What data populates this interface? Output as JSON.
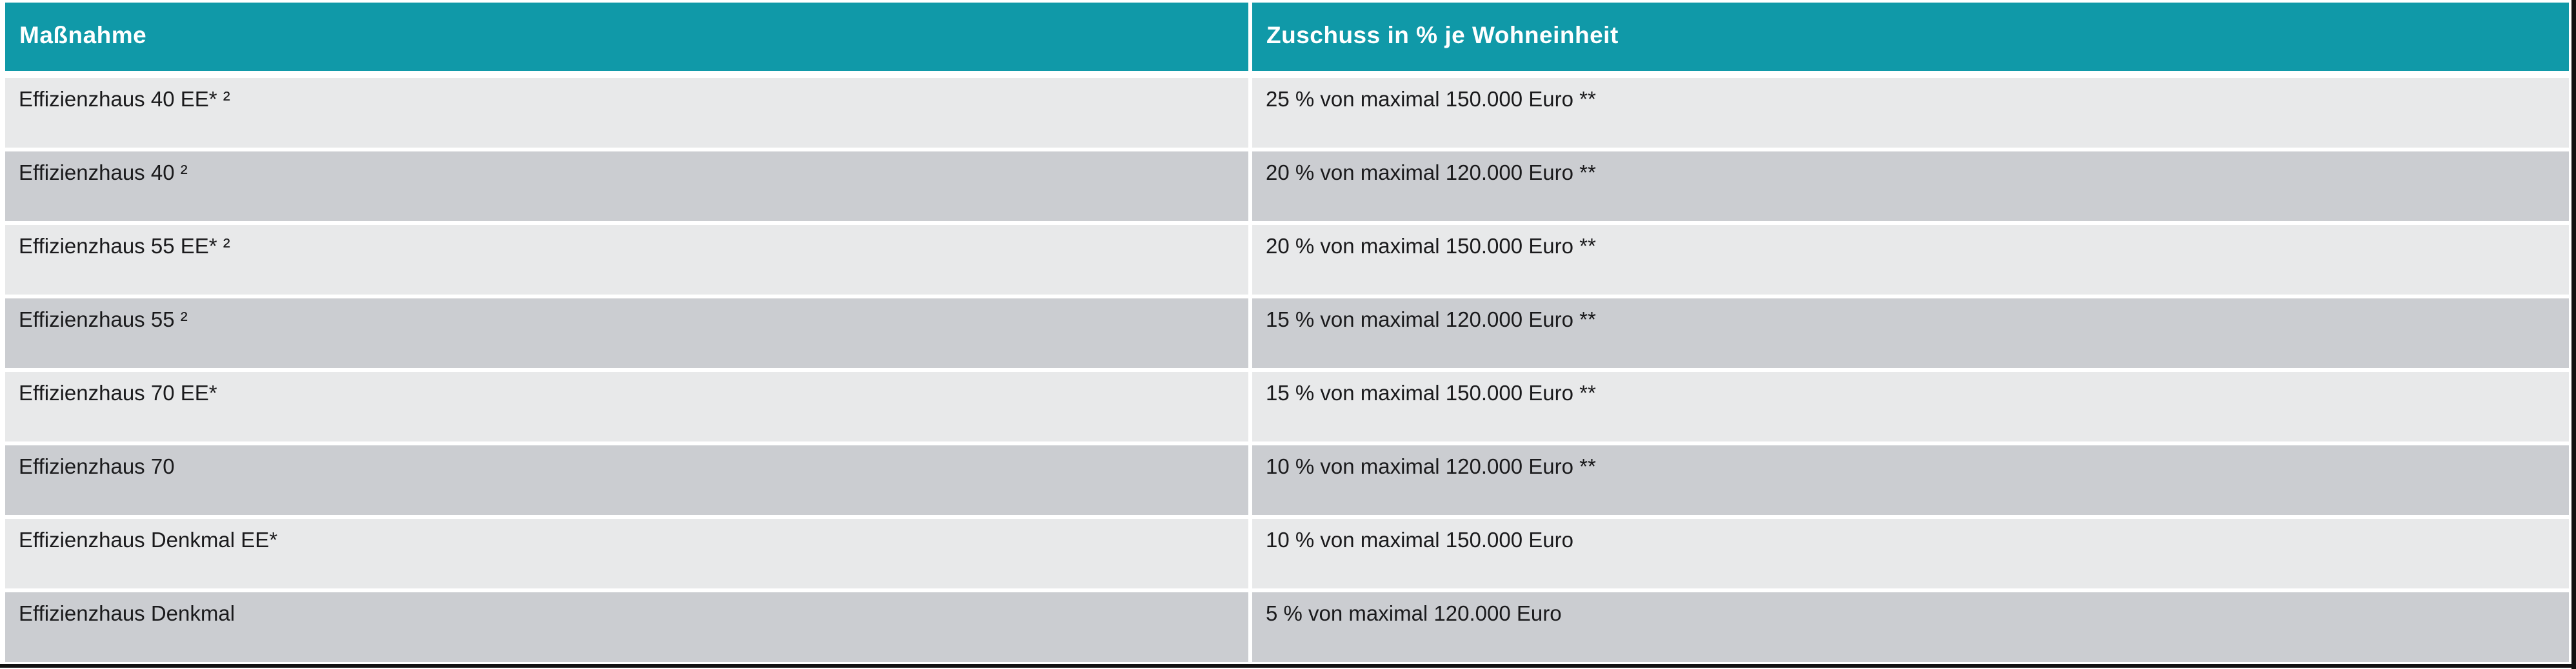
{
  "table": {
    "header": {
      "massnahme": "Maßnahme",
      "zuschuss": "Zuschuss in % je Wohneinheit"
    },
    "rows": [
      {
        "massnahme": "Effizienzhaus 40 EE* ²",
        "zuschuss": "25 % von maximal 150.000 Euro **"
      },
      {
        "massnahme": "Effizienzhaus 40 ²",
        "zuschuss": "20 % von maximal 120.000 Euro **"
      },
      {
        "massnahme": "Effizienzhaus 55 EE* ²",
        "zuschuss": "20 % von maximal 150.000 Euro **"
      },
      {
        "massnahme": "Effizienzhaus 55 ²",
        "zuschuss": "15 % von maximal 120.000 Euro **"
      },
      {
        "massnahme": "Effizienzhaus 70 EE*",
        "zuschuss": "15 % von maximal 150.000 Euro **"
      },
      {
        "massnahme": "Effizienzhaus 70",
        "zuschuss": "10 % von maximal 120.000 Euro **"
      },
      {
        "massnahme": "Effizienzhaus Denkmal EE*",
        "zuschuss": "10 % von maximal 150.000 Euro"
      },
      {
        "massnahme": "Effizienzhaus Denkmal",
        "zuschuss": "5 % von maximal 120.000 Euro"
      }
    ],
    "colors": {
      "header_bg": "#1099a8",
      "header_text": "#ffffff",
      "row_odd_bg": "#cbcdd1",
      "row_even_bg": "#e8e9ea",
      "cell_text": "#1a1a1c",
      "rule": "#111111"
    }
  }
}
